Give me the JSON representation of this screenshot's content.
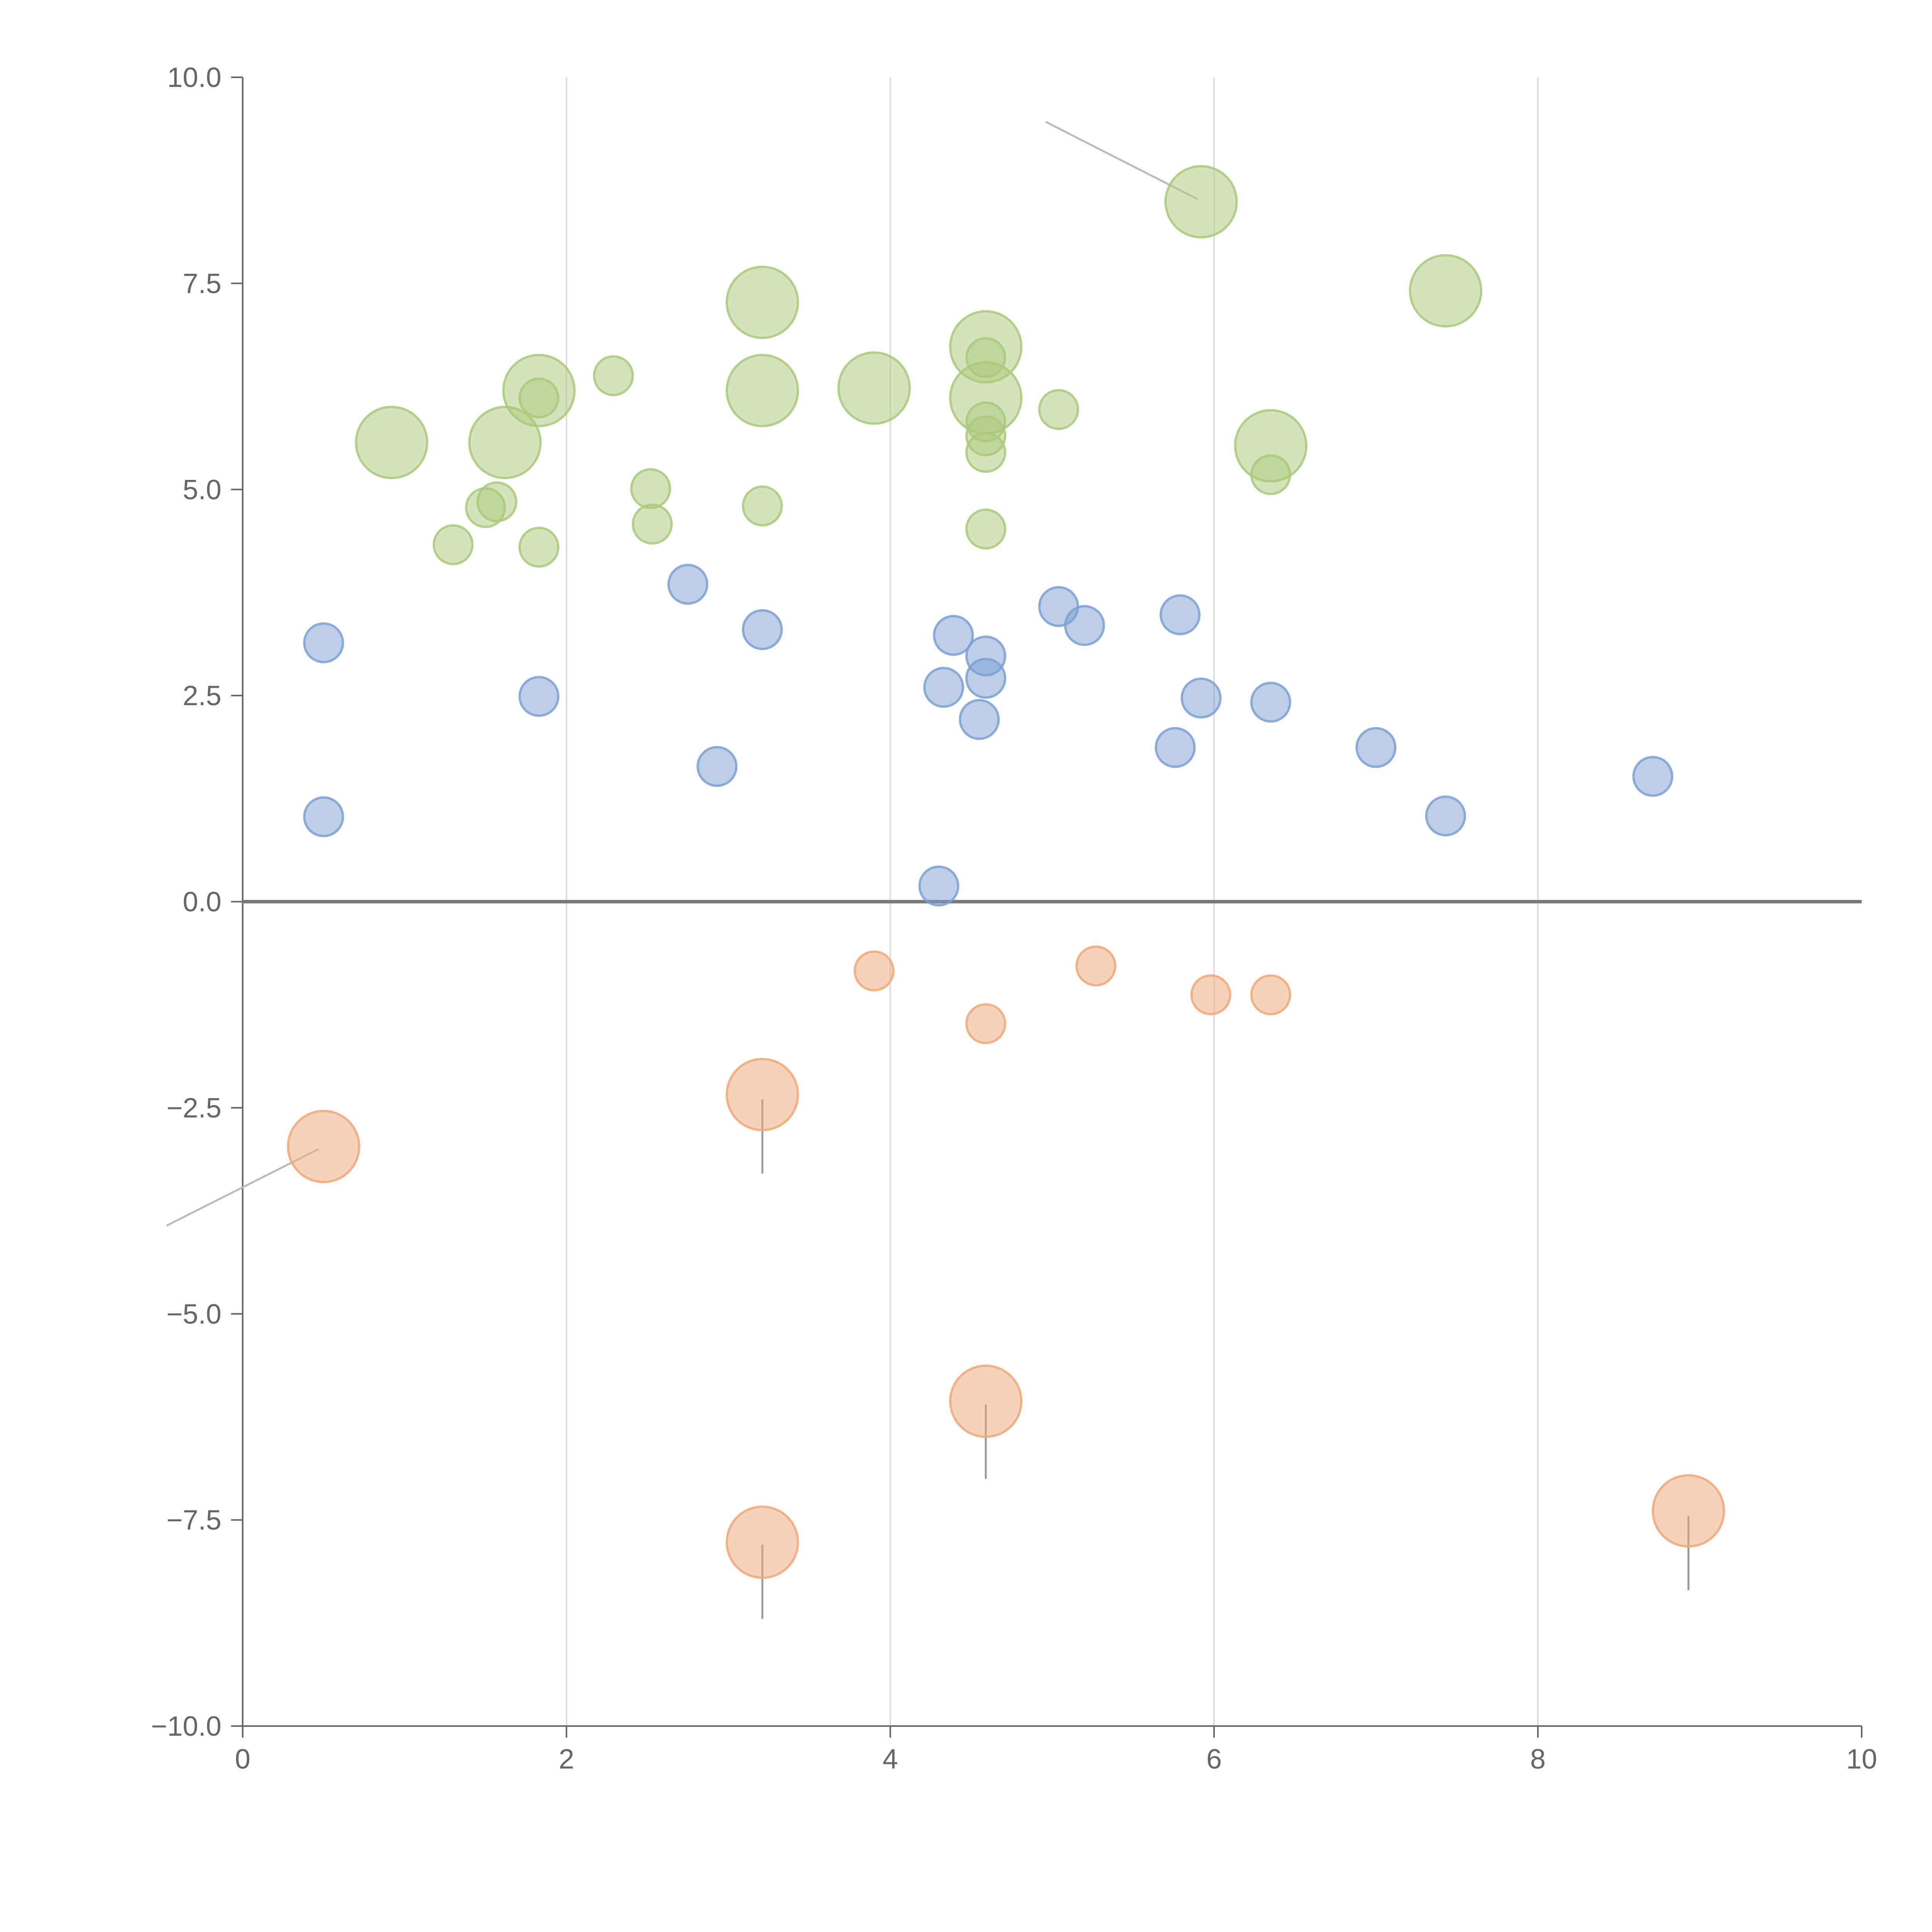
{
  "chart_data": {
    "type": "scatter",
    "title": "",
    "xlabel": "",
    "ylabel": "",
    "xlim": [
      0,
      10
    ],
    "ylim": [
      -10,
      10
    ],
    "x_ticks": [
      "0",
      "2",
      "4",
      "6",
      "8",
      "10"
    ],
    "y_ticks": [
      "10.0",
      "7.5",
      "5.0",
      "2.5",
      "0.0",
      "−2.5",
      "−5.0",
      "−7.5",
      "−10.0"
    ],
    "grid": "vertical",
    "legend": "none",
    "colors": {
      "green": "#a9c97a",
      "blue": "#7c9fd2",
      "orange": "#eea878",
      "axis": "#666666",
      "grid": "#dddddd",
      "zero_line": "#7a7a7a"
    },
    "series": [
      {
        "name": "green",
        "points": [
          {
            "x": 0.92,
            "y": 5.57,
            "size": "large"
          },
          {
            "x": 1.62,
            "y": 5.57,
            "size": "large"
          },
          {
            "x": 1.83,
            "y": 6.2,
            "size": "large"
          },
          {
            "x": 3.21,
            "y": 7.27,
            "size": "large"
          },
          {
            "x": 3.21,
            "y": 6.2,
            "size": "large"
          },
          {
            "x": 3.9,
            "y": 6.23,
            "size": "large"
          },
          {
            "x": 4.59,
            "y": 6.73,
            "size": "large"
          },
          {
            "x": 4.59,
            "y": 6.11,
            "size": "large"
          },
          {
            "x": 5.92,
            "y": 8.49,
            "size": "large"
          },
          {
            "x": 6.35,
            "y": 5.53,
            "size": "large"
          },
          {
            "x": 7.43,
            "y": 7.41,
            "size": "large"
          },
          {
            "x": 1.3,
            "y": 4.33,
            "size": "small"
          },
          {
            "x": 1.5,
            "y": 4.78,
            "size": "small"
          },
          {
            "x": 1.57,
            "y": 4.85,
            "size": "small"
          },
          {
            "x": 1.83,
            "y": 4.3,
            "size": "small"
          },
          {
            "x": 1.83,
            "y": 6.11,
            "size": "small"
          },
          {
            "x": 2.29,
            "y": 6.38,
            "size": "small"
          },
          {
            "x": 2.52,
            "y": 5.01,
            "size": "small"
          },
          {
            "x": 2.53,
            "y": 4.58,
            "size": "small"
          },
          {
            "x": 3.21,
            "y": 4.8,
            "size": "small"
          },
          {
            "x": 4.59,
            "y": 6.6,
            "size": "small"
          },
          {
            "x": 4.59,
            "y": 5.82,
            "size": "small"
          },
          {
            "x": 4.59,
            "y": 5.65,
            "size": "small"
          },
          {
            "x": 4.59,
            "y": 5.45,
            "size": "small"
          },
          {
            "x": 4.59,
            "y": 4.52,
            "size": "small"
          },
          {
            "x": 5.04,
            "y": 5.97,
            "size": "small"
          },
          {
            "x": 6.35,
            "y": 5.18,
            "size": "small"
          }
        ]
      },
      {
        "name": "blue",
        "points": [
          {
            "x": 0.5,
            "y": 3.14,
            "size": "small"
          },
          {
            "x": 0.5,
            "y": 1.03,
            "size": "small"
          },
          {
            "x": 1.83,
            "y": 2.49,
            "size": "small"
          },
          {
            "x": 2.75,
            "y": 3.85,
            "size": "small"
          },
          {
            "x": 2.93,
            "y": 1.64,
            "size": "small"
          },
          {
            "x": 3.21,
            "y": 3.3,
            "size": "small"
          },
          {
            "x": 4.3,
            "y": 0.19,
            "size": "small"
          },
          {
            "x": 4.33,
            "y": 2.6,
            "size": "small"
          },
          {
            "x": 4.39,
            "y": 3.23,
            "size": "small"
          },
          {
            "x": 4.55,
            "y": 2.21,
            "size": "small"
          },
          {
            "x": 4.59,
            "y": 2.98,
            "size": "small"
          },
          {
            "x": 4.59,
            "y": 2.71,
            "size": "small"
          },
          {
            "x": 5.04,
            "y": 3.58,
            "size": "small"
          },
          {
            "x": 5.2,
            "y": 3.35,
            "size": "small"
          },
          {
            "x": 5.76,
            "y": 1.87,
            "size": "small"
          },
          {
            "x": 5.79,
            "y": 3.48,
            "size": "small"
          },
          {
            "x": 5.92,
            "y": 2.47,
            "size": "small"
          },
          {
            "x": 6.35,
            "y": 2.42,
            "size": "small"
          },
          {
            "x": 7.0,
            "y": 1.87,
            "size": "small"
          },
          {
            "x": 7.43,
            "y": 1.04,
            "size": "small"
          },
          {
            "x": 8.71,
            "y": 1.52,
            "size": "small"
          }
        ]
      },
      {
        "name": "orange",
        "points": [
          {
            "x": 0.5,
            "y": -2.97,
            "size": "large"
          },
          {
            "x": 3.21,
            "y": -2.34,
            "size": "large"
          },
          {
            "x": 3.21,
            "y": -7.77,
            "size": "large"
          },
          {
            "x": 4.59,
            "y": -6.06,
            "size": "large"
          },
          {
            "x": 8.93,
            "y": -7.39,
            "size": "large"
          },
          {
            "x": 3.9,
            "y": -0.84,
            "size": "small"
          },
          {
            "x": 4.59,
            "y": -1.48,
            "size": "small"
          },
          {
            "x": 5.27,
            "y": -0.78,
            "size": "small"
          },
          {
            "x": 5.98,
            "y": -1.13,
            "size": "small"
          },
          {
            "x": 6.35,
            "y": -1.13,
            "size": "small"
          }
        ]
      }
    ],
    "connectors": [
      {
        "from": [
          4.96,
          9.46
        ],
        "to": [
          5.9,
          8.52
        ],
        "color": "#bbbbbb"
      },
      {
        "from": [
          -0.47,
          -3.93
        ],
        "to": [
          0.47,
          -3.0
        ],
        "color": "#bbbbbb"
      },
      {
        "from": [
          3.21,
          -2.4
        ],
        "to": [
          3.21,
          -3.3
        ],
        "color": "#999999"
      },
      {
        "from": [
          4.59,
          -6.1
        ],
        "to": [
          4.59,
          -7.0
        ],
        "color": "#999999"
      },
      {
        "from": [
          3.21,
          -7.8
        ],
        "to": [
          3.21,
          -8.7
        ],
        "color": "#999999"
      },
      {
        "from": [
          8.93,
          -7.45
        ],
        "to": [
          8.93,
          -8.35
        ],
        "color": "#999999"
      }
    ]
  }
}
